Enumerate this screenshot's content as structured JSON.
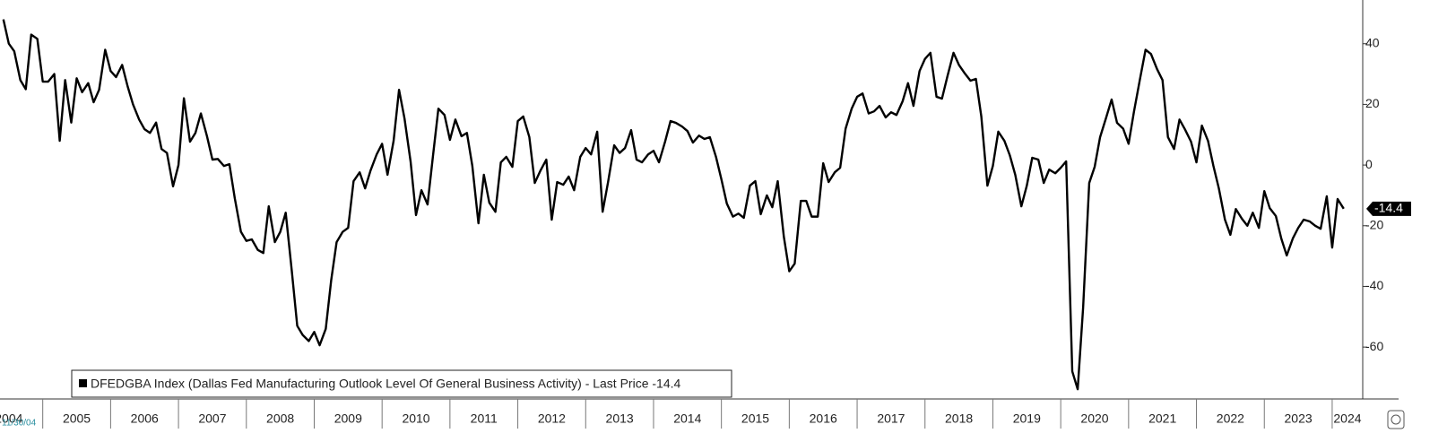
{
  "chart_data": {
    "type": "line",
    "start_date_label": "11/30/04",
    "last_price_label": "- Last Price",
    "series": [
      {
        "name": "DFEDGBA Index (Dallas Fed Manufacturing Outlook Level Of General Business Activity)",
        "color": "#000000",
        "x": [
          2004.42,
          2004.5,
          2004.58,
          2004.67,
          2004.75,
          2004.83,
          2004.92,
          2005,
          2005.08,
          2005.17,
          2005.25,
          2005.33,
          2005.42,
          2005.5,
          2005.58,
          2005.67,
          2005.75,
          2005.83,
          2005.92,
          2006,
          2006.08,
          2006.17,
          2006.25,
          2006.33,
          2006.42,
          2006.5,
          2006.58,
          2006.67,
          2006.75,
          2006.83,
          2006.92,
          2007,
          2007.08,
          2007.17,
          2007.25,
          2007.33,
          2007.42,
          2007.5,
          2007.58,
          2007.67,
          2007.75,
          2007.83,
          2007.92,
          2008,
          2008.08,
          2008.17,
          2008.25,
          2008.33,
          2008.42,
          2008.5,
          2008.58,
          2008.67,
          2008.75,
          2008.83,
          2008.92,
          2009,
          2009.08,
          2009.17,
          2009.25,
          2009.33,
          2009.42,
          2009.5,
          2009.58,
          2009.67,
          2009.75,
          2009.83,
          2009.92,
          2010,
          2010.08,
          2010.17,
          2010.25,
          2010.33,
          2010.42,
          2010.5,
          2010.58,
          2010.67,
          2010.75,
          2010.83,
          2010.92,
          2011,
          2011.08,
          2011.17,
          2011.25,
          2011.33,
          2011.42,
          2011.5,
          2011.58,
          2011.67,
          2011.75,
          2011.83,
          2011.92,
          2012,
          2012.08,
          2012.17,
          2012.25,
          2012.33,
          2012.42,
          2012.5,
          2012.58,
          2012.67,
          2012.75,
          2012.83,
          2012.92,
          2013,
          2013.08,
          2013.17,
          2013.25,
          2013.33,
          2013.42,
          2013.5,
          2013.58,
          2013.67,
          2013.75,
          2013.83,
          2013.92,
          2014,
          2014.08,
          2014.17,
          2014.25,
          2014.33,
          2014.42,
          2014.5,
          2014.58,
          2014.67,
          2014.75,
          2014.83,
          2014.92,
          2015,
          2015.08,
          2015.17,
          2015.25,
          2015.33,
          2015.42,
          2015.5,
          2015.58,
          2015.67,
          2015.75,
          2015.83,
          2015.92,
          2016,
          2016.08,
          2016.17,
          2016.25,
          2016.33,
          2016.42,
          2016.5,
          2016.58,
          2016.67,
          2016.75,
          2016.83,
          2016.92,
          2017,
          2017.08,
          2017.17,
          2017.25,
          2017.33,
          2017.42,
          2017.5,
          2017.58,
          2017.67,
          2017.75,
          2017.83,
          2017.92,
          2018,
          2018.08,
          2018.17,
          2018.25,
          2018.33,
          2018.42,
          2018.5,
          2018.58,
          2018.67,
          2018.75,
          2018.83,
          2018.92,
          2019,
          2019.08,
          2019.17,
          2019.25,
          2019.33,
          2019.42,
          2019.5,
          2019.58,
          2019.67,
          2019.75,
          2019.83,
          2019.92,
          2020,
          2020.08,
          2020.17,
          2020.25,
          2020.33,
          2020.42,
          2020.5,
          2020.58,
          2020.67,
          2020.75,
          2020.83,
          2020.92,
          2021,
          2021.08,
          2021.17,
          2021.25,
          2021.33,
          2021.42,
          2021.5,
          2021.58,
          2021.67,
          2021.75,
          2021.83,
          2021.92,
          2022,
          2022.08,
          2022.17,
          2022.25,
          2022.33,
          2022.42,
          2022.5,
          2022.58,
          2022.67,
          2022.75,
          2022.83,
          2022.92,
          2023,
          2023.08,
          2023.17,
          2023.25,
          2023.33,
          2023.42,
          2023.5,
          2023.58,
          2023.67,
          2023.75,
          2023.83,
          2023.92,
          2024,
          2024.08,
          2024.17
        ],
        "values": [
          48,
          40,
          37.5,
          28,
          25,
          43,
          41.6,
          27.5,
          27.5,
          30,
          8,
          28,
          14,
          28.6,
          24,
          27,
          20.7,
          24.8,
          38,
          31,
          29,
          33,
          26,
          20,
          15,
          11.8,
          10.6,
          14,
          5.3,
          4,
          -7,
          0,
          22,
          7.7,
          10.6,
          17,
          9.5,
          1.8,
          2,
          -0.3,
          0.3,
          -11,
          -22,
          -25,
          -24.5,
          -28,
          -29,
          -13.6,
          -25.4,
          -22,
          -15.7,
          -35,
          -53,
          -56,
          -58,
          -55,
          -59.4,
          -54,
          -38,
          -25.4,
          -22,
          -20.7,
          -5.3,
          -2.4,
          -7.7,
          -1.8,
          3.5,
          7,
          -3.2,
          8,
          24.8,
          15.4,
          1.2,
          -16.5,
          -8.3,
          -13,
          3,
          18.6,
          16.5,
          8.3,
          15,
          9.5,
          10.6,
          -0.3,
          -19.2,
          -3.2,
          -12.4,
          -15.4,
          0.9,
          2.7,
          -0.6,
          14.5,
          16,
          9.2,
          -5.9,
          -2,
          1.8,
          -18,
          -5.6,
          -6.5,
          -3.8,
          -8.3,
          2.7,
          5.6,
          3.5,
          11,
          -15.4,
          -5.6,
          6.5,
          4,
          5.6,
          11.5,
          1.8,
          0.9,
          3.5,
          4.7,
          0.9,
          7.7,
          14.5,
          13.9,
          12.7,
          11.2,
          7.4,
          9.7,
          8.6,
          9.2,
          2.7,
          -4.7,
          -12.7,
          -17,
          -16,
          -17.4,
          -6.8,
          -5.3,
          -16.2,
          -10,
          -13.9,
          -5.3,
          -23.6,
          -35,
          -32.5,
          -11.8,
          -11.8,
          -17,
          -17,
          0.6,
          -5.6,
          -2.4,
          -0.9,
          12,
          18.6,
          22.5,
          23.6,
          17,
          17.7,
          19.5,
          15.7,
          17.4,
          16.5,
          21,
          27,
          19.5,
          31,
          35,
          37,
          22.5,
          21.9,
          29.2,
          37,
          33,
          30.4,
          27.8,
          28.4,
          16,
          -6.8,
          -0.3,
          11,
          8,
          3.2,
          -3.2,
          -13.6,
          -6.8,
          2.4,
          1.8,
          -5.9,
          -1.5,
          -2.7,
          -0.9,
          1.2,
          -68,
          -73.9,
          -47,
          -5.9,
          -0.6,
          9.2,
          15.7,
          21.6,
          13.9,
          12,
          7,
          17.7,
          28.6,
          38,
          36.6,
          31.6,
          28,
          9.2,
          5.3,
          15,
          11.8,
          7.7,
          0.9,
          13,
          8,
          -0.3,
          -7.7,
          -18,
          -23,
          -14.5,
          -17.7,
          -20,
          -15.7,
          -20.7,
          -8.6,
          -14.2,
          -16.8,
          -24.2,
          -29.8,
          -24.2,
          -20.7,
          -18,
          -18.6,
          -20,
          -21,
          -10.3,
          -27.2,
          -11.2,
          -14.4
        ]
      }
    ],
    "xlim": [
      2004.37,
      2024.45
    ],
    "xticks": [
      2004,
      2005,
      2006,
      2007,
      2008,
      2009,
      2010,
      2011,
      2012,
      2013,
      2014,
      2015,
      2016,
      2017,
      2018,
      2019,
      2020,
      2021,
      2022,
      2023,
      2024
    ],
    "ylim": [
      -77.1,
      54.4
    ],
    "yticks": [
      -60,
      -40,
      -20,
      0,
      20,
      40
    ],
    "y_axis_side": "right",
    "grid": false
  }
}
